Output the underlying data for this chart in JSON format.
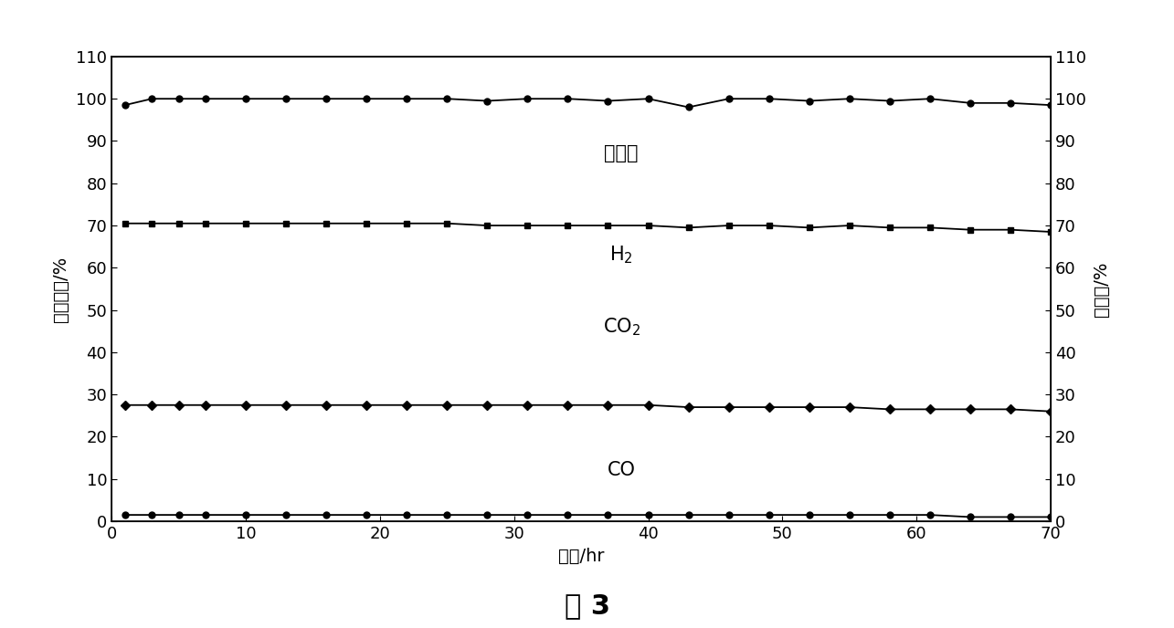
{
  "title": "",
  "xlabel": "时间/hr",
  "ylabel_left": "产物组成/%",
  "ylabel_right": "转化率/%",
  "caption": "图 3",
  "xlim": [
    0,
    70
  ],
  "ylim": [
    0,
    110
  ],
  "xticks": [
    0,
    10,
    20,
    30,
    40,
    50,
    60,
    70
  ],
  "yticks": [
    0,
    10,
    20,
    30,
    40,
    50,
    60,
    70,
    80,
    90,
    100,
    110
  ],
  "conversion_x": [
    1,
    3,
    5,
    7,
    10,
    13,
    16,
    19,
    22,
    25,
    28,
    31,
    34,
    37,
    40,
    43,
    46,
    49,
    52,
    55,
    58,
    61,
    64,
    67,
    70
  ],
  "conversion_y": [
    98.5,
    100,
    100,
    100,
    100,
    100,
    100,
    100,
    100,
    100,
    99.5,
    100,
    100,
    99.5,
    100,
    98,
    100,
    100,
    99.5,
    100,
    99.5,
    100,
    99,
    99,
    98.5
  ],
  "h2_x": [
    1,
    3,
    5,
    7,
    10,
    13,
    16,
    19,
    22,
    25,
    28,
    31,
    34,
    37,
    40,
    43,
    46,
    49,
    52,
    55,
    58,
    61,
    64,
    67,
    70
  ],
  "h2_y": [
    70.5,
    70.5,
    70.5,
    70.5,
    70.5,
    70.5,
    70.5,
    70.5,
    70.5,
    70.5,
    70,
    70,
    70,
    70,
    70,
    69.5,
    70,
    70,
    69.5,
    70,
    69.5,
    69.5,
    69,
    69,
    68.5
  ],
  "co2_x": [
    1,
    3,
    5,
    7,
    10,
    13,
    16,
    19,
    22,
    25,
    28,
    31,
    34,
    37,
    40,
    43,
    46,
    49,
    52,
    55,
    58,
    61,
    64,
    67,
    70
  ],
  "co2_y": [
    27.5,
    27.5,
    27.5,
    27.5,
    27.5,
    27.5,
    27.5,
    27.5,
    27.5,
    27.5,
    27.5,
    27.5,
    27.5,
    27.5,
    27.5,
    27,
    27,
    27,
    27,
    27,
    26.5,
    26.5,
    26.5,
    26.5,
    26
  ],
  "co_x": [
    1,
    3,
    5,
    7,
    10,
    13,
    16,
    19,
    22,
    25,
    28,
    31,
    34,
    37,
    40,
    43,
    46,
    49,
    52,
    55,
    58,
    61,
    64,
    67,
    70
  ],
  "co_y": [
    1.5,
    1.5,
    1.5,
    1.5,
    1.5,
    1.5,
    1.5,
    1.5,
    1.5,
    1.5,
    1.5,
    1.5,
    1.5,
    1.5,
    1.5,
    1.5,
    1.5,
    1.5,
    1.5,
    1.5,
    1.5,
    1.5,
    1.0,
    1.0,
    1.0
  ],
  "label_conversion": "转化率",
  "label_h2": "H$_2$",
  "label_co2": "CO$_2$",
  "label_co": "CO",
  "line_color": "#000000",
  "bg_color": "#ffffff",
  "font_size_labels": 14,
  "font_size_caption": 22,
  "font_size_annot": 15,
  "font_size_ticks": 13
}
